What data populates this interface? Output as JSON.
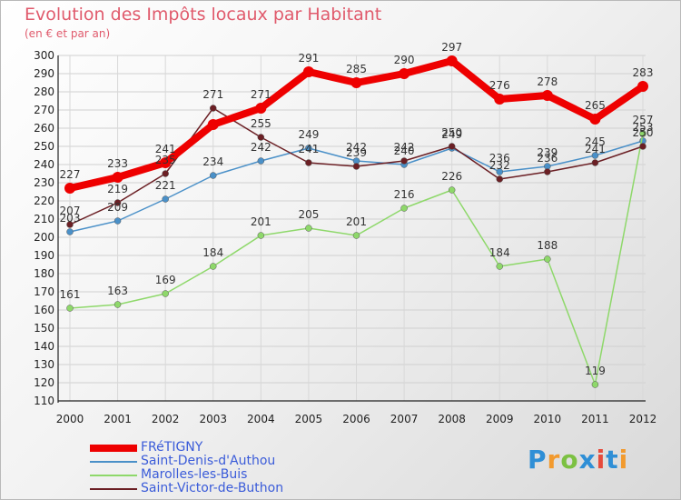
{
  "title": "Evolution des Impôts locaux par Habitant",
  "subtitle": "(en € et par an)",
  "logo": {
    "text": "Proxiti",
    "colors": [
      "#2f8fd6",
      "#f29a2e",
      "#7cc142",
      "#2f8fd6",
      "#e64b3c",
      "#2f8fd6",
      "#f29a2e"
    ]
  },
  "chart_data": {
    "type": "line",
    "x": [
      "2000",
      "2001",
      "2002",
      "2003",
      "2004",
      "2005",
      "2006",
      "2007",
      "2008",
      "2009",
      "2010",
      "2011",
      "2012"
    ],
    "ylim": [
      110,
      300
    ],
    "yticks": [
      110,
      120,
      130,
      140,
      150,
      160,
      170,
      180,
      190,
      200,
      210,
      220,
      230,
      240,
      250,
      260,
      270,
      280,
      290,
      300
    ],
    "grid": true,
    "legend": "bottom-left",
    "series": [
      {
        "name": "FRéTIGNY",
        "color": "#ee0000",
        "values": [
          227,
          233,
          241,
          262,
          271,
          291,
          285,
          290,
          297,
          276,
          278,
          265,
          283
        ],
        "labels": [
          "227",
          "233",
          "241",
          "",
          "271",
          "291",
          "285",
          "290",
          "297",
          "276",
          "278",
          "265",
          "283"
        ]
      },
      {
        "name": "Saint-Denis-d'Authou",
        "color": "#4a90c8",
        "values": [
          203,
          209,
          221,
          234,
          242,
          249,
          242,
          240,
          249,
          236,
          239,
          245,
          253
        ],
        "labels": [
          "203",
          "209",
          "221",
          "234",
          "242",
          "249",
          "242",
          "240",
          "249",
          "236",
          "239",
          "245",
          "253"
        ]
      },
      {
        "name": "Marolles-les-Buis",
        "color": "#8ed86a",
        "values": [
          161,
          163,
          169,
          184,
          201,
          205,
          201,
          216,
          226,
          184,
          188,
          119,
          257
        ],
        "labels": [
          "161",
          "163",
          "169",
          "184",
          "201",
          "205",
          "201",
          "216",
          "226",
          "184",
          "188",
          "119",
          "257"
        ]
      },
      {
        "name": "Saint-Victor-de-Buthon",
        "color": "#6b1f24",
        "values": [
          207,
          219,
          235,
          271,
          255,
          241,
          239,
          242,
          250,
          232,
          236,
          241,
          250
        ],
        "labels": [
          "207",
          "219",
          "235",
          "271",
          "255",
          "241",
          "239",
          "242",
          "250",
          "232",
          "236",
          "241",
          "250"
        ]
      }
    ]
  }
}
